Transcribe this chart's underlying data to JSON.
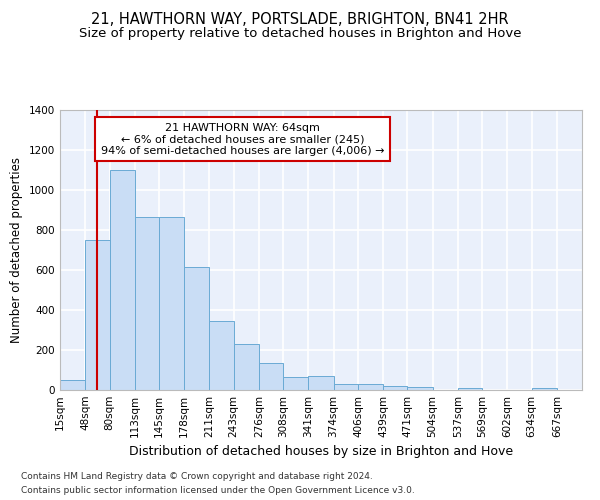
{
  "title1": "21, HAWTHORN WAY, PORTSLADE, BRIGHTON, BN41 2HR",
  "title2": "Size of property relative to detached houses in Brighton and Hove",
  "xlabel": "Distribution of detached houses by size in Brighton and Hove",
  "ylabel": "Number of detached properties",
  "footnote1": "Contains HM Land Registry data © Crown copyright and database right 2024.",
  "footnote2": "Contains public sector information licensed under the Open Government Licence v3.0.",
  "annotation_line1": "21 HAWTHORN WAY: 64sqm",
  "annotation_line2": "← 6% of detached houses are smaller (245)",
  "annotation_line3": "94% of semi-detached houses are larger (4,006) →",
  "bar_labels": [
    "15sqm",
    "48sqm",
    "80sqm",
    "113sqm",
    "145sqm",
    "178sqm",
    "211sqm",
    "243sqm",
    "276sqm",
    "308sqm",
    "341sqm",
    "374sqm",
    "406sqm",
    "439sqm",
    "471sqm",
    "504sqm",
    "537sqm",
    "569sqm",
    "602sqm",
    "634sqm",
    "667sqm"
  ],
  "bar_values": [
    50,
    750,
    1100,
    865,
    865,
    615,
    345,
    228,
    133,
    63,
    70,
    28,
    28,
    20,
    15,
    0,
    10,
    0,
    0,
    10,
    0
  ],
  "bar_color": "#c9ddf5",
  "bar_edge_color": "#6aaad4",
  "bg_color": "#eaf0fb",
  "grid_color": "#ffffff",
  "property_line_x": 64,
  "bin_edges": [
    15,
    48,
    80,
    113,
    145,
    178,
    211,
    243,
    276,
    308,
    341,
    374,
    406,
    439,
    471,
    504,
    537,
    569,
    602,
    634,
    667,
    700
  ],
  "ylim": [
    0,
    1400
  ],
  "yticks": [
    0,
    200,
    400,
    600,
    800,
    1000,
    1200,
    1400
  ],
  "annotation_box_color": "#cc0000",
  "property_line_color": "#cc0000",
  "title1_fontsize": 10.5,
  "title2_fontsize": 9.5,
  "xlabel_fontsize": 9,
  "ylabel_fontsize": 8.5,
  "tick_fontsize": 7.5,
  "annotation_fontsize": 8,
  "footnote_fontsize": 6.5
}
